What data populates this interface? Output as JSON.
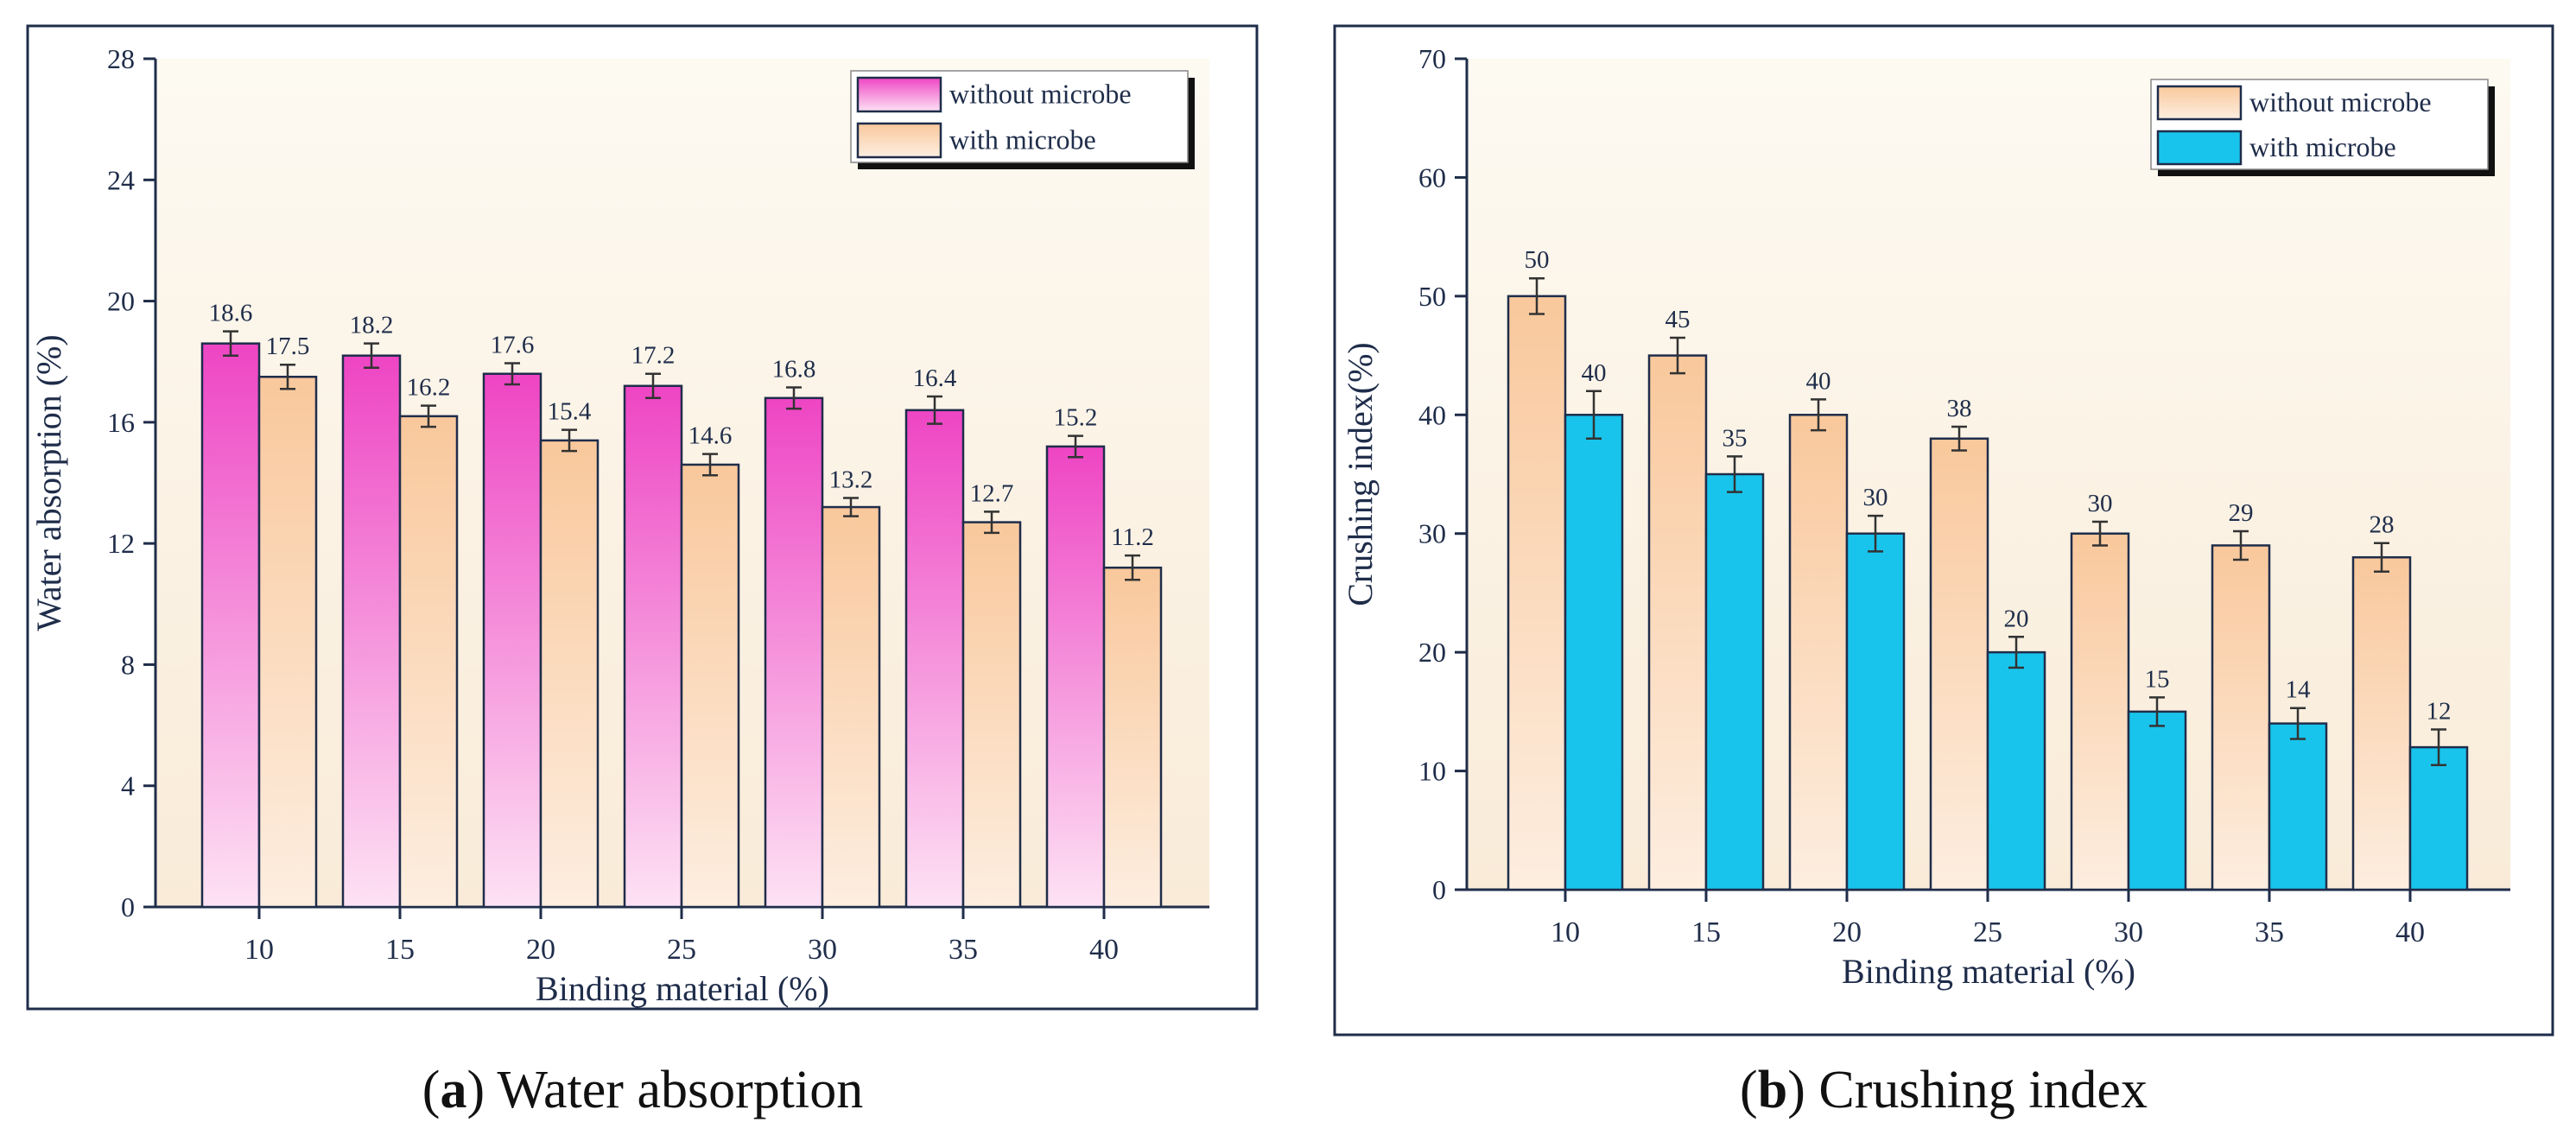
{
  "colors": {
    "pink_top": "#ee45c4",
    "pink_bottom": "#fde2f4",
    "orange_top": "#f9c89c",
    "orange_bottom": "#fdeee0",
    "cyan": "#18c4ec",
    "bg_top": "#fdfaf2",
    "bg_bottom": "#f9ebd8",
    "axis": "#1f2d4a"
  },
  "chart_data": [
    {
      "type": "bar",
      "caption_letter": "a",
      "caption_text": "Water absorption",
      "xlabel": "Binding material (%)",
      "ylabel": "Water absorption (%)",
      "categories": [
        "10",
        "15",
        "20",
        "25",
        "30",
        "35",
        "40"
      ],
      "ylim": [
        0,
        28
      ],
      "yticks": [
        0,
        4,
        8,
        12,
        16,
        20,
        24,
        28
      ],
      "yticklabels": [
        "0",
        "4",
        "8",
        "12",
        "16",
        "20",
        "24",
        "28"
      ],
      "legend_position": "top-right",
      "series": [
        {
          "name": "without microbe",
          "style": "pink",
          "values": [
            18.6,
            18.2,
            17.6,
            17.2,
            16.8,
            16.4,
            15.2
          ],
          "labels": [
            "18.6",
            "18.2",
            "17.6",
            "17.2",
            "16.8",
            "16.4",
            "15.2"
          ],
          "errors": [
            0.4,
            0.4,
            0.35,
            0.4,
            0.35,
            0.45,
            0.35
          ]
        },
        {
          "name": "with microbe",
          "style": "orange",
          "values": [
            17.5,
            16.2,
            15.4,
            14.6,
            13.2,
            12.7,
            11.2
          ],
          "labels": [
            "17.5",
            "16.2",
            "15.4",
            "14.6",
            "13.2",
            "12.7",
            "11.2"
          ],
          "errors": [
            0.4,
            0.35,
            0.35,
            0.35,
            0.3,
            0.35,
            0.4
          ]
        }
      ]
    },
    {
      "type": "bar",
      "caption_letter": "b",
      "caption_text": "Crushing index",
      "xlabel": "Binding material (%)",
      "ylabel": "Crushing index(%)",
      "categories": [
        "10",
        "15",
        "20",
        "25",
        "30",
        "35",
        "40"
      ],
      "ylim": [
        0,
        70
      ],
      "yticks": [
        0,
        10,
        20,
        30,
        40,
        50,
        60,
        70
      ],
      "yticklabels": [
        "0",
        "10",
        "20",
        "30",
        "40",
        "50",
        "60",
        "70"
      ],
      "legend_position": "top-right",
      "series": [
        {
          "name": "without microbe",
          "style": "orange",
          "values": [
            50,
            45,
            40,
            38,
            30,
            29,
            28
          ],
          "labels": [
            "50",
            "45",
            "40",
            "38",
            "30",
            "29",
            "28"
          ],
          "errors": [
            1.5,
            1.5,
            1.3,
            1.0,
            1.0,
            1.2,
            1.2
          ]
        },
        {
          "name": "with microbe",
          "style": "cyan",
          "values": [
            40,
            35,
            30,
            20,
            15,
            14,
            12
          ],
          "labels": [
            "40",
            "35",
            "30",
            "20",
            "15",
            "14",
            "12"
          ],
          "errors": [
            2.0,
            1.5,
            1.5,
            1.3,
            1.2,
            1.3,
            1.5
          ]
        }
      ]
    }
  ]
}
